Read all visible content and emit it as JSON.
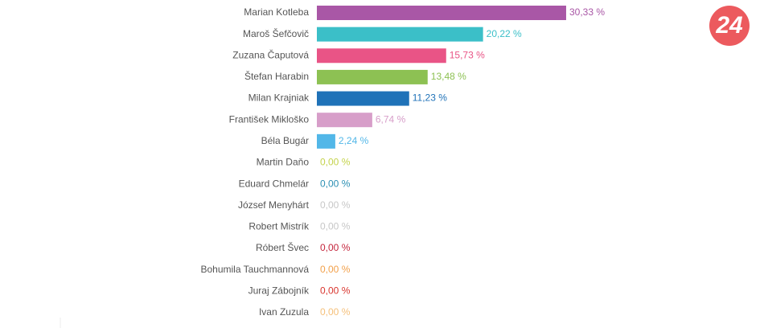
{
  "chart_data": {
    "type": "bar",
    "orientation": "horizontal",
    "categories": [
      "Marian Kotleba",
      "Maroš Šefčovič",
      "Zuzana Čaputová",
      "Štefan Harabin",
      "Milan Krajniak",
      "František Mikloško",
      "Béla Bugár",
      "Martin Daňo",
      "Eduard Chmelár",
      "József Menyhárt",
      "Robert Mistrík",
      "Róbert Švec",
      "Bohumila Tauchmannová",
      "Juraj Zábojník",
      "Ivan Zuzula"
    ],
    "values": [
      30.33,
      20.22,
      15.73,
      13.48,
      11.23,
      6.74,
      2.24,
      0,
      0,
      0,
      0,
      0,
      0,
      0,
      0
    ],
    "value_labels": [
      "30,33 %",
      "20,22 %",
      "15,73 %",
      "13,48 %",
      "11,23 %",
      "6,74 %",
      "2,24 %",
      "0,00 %",
      "0,00 %",
      "0,00 %",
      "0,00 %",
      "0,00 %",
      "0,00 %",
      "0,00 %",
      "0,00 %"
    ],
    "colors": [
      "#a957a6",
      "#3bbfc8",
      "#e95486",
      "#8dc153",
      "#1f72b8",
      "#d79ec9",
      "#52b7e8",
      "#c4d34c",
      "#2b8fb3",
      "#c7c7c7",
      "#c7c7c7",
      "#c4253c",
      "#f2a04a",
      "#d9352e",
      "#f5c07a"
    ]
  },
  "logo": "24"
}
